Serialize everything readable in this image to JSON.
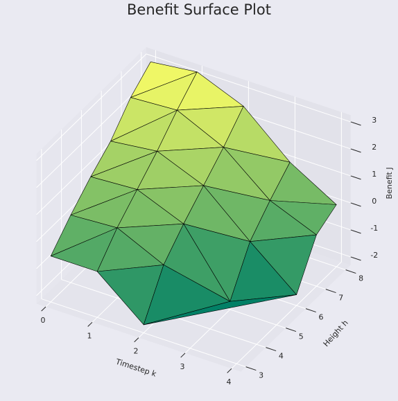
{
  "chart_data": {
    "type": "trisurf3d",
    "title": "Benefit Surface Plot",
    "xlabel": "Timestep k",
    "ylabel": "Height h",
    "zlabel": "Benefit J",
    "x": [
      0,
      0,
      0,
      0,
      0,
      0,
      1,
      1,
      1,
      1,
      1,
      1,
      2,
      2,
      2,
      2,
      2,
      2,
      3,
      3,
      3,
      3,
      4,
      4,
      4
    ],
    "y": [
      3,
      4,
      5,
      6,
      7,
      8,
      3,
      4,
      5,
      6,
      7,
      8,
      3,
      4,
      5,
      6,
      7,
      8,
      5,
      6,
      7,
      8,
      6,
      7,
      8
    ],
    "z": [
      -0.6,
      0.2,
      0.9,
      1.5,
      2.4,
      3.0,
      -0.6,
      0.3,
      1.0,
      1.7,
      2.5,
      3.2,
      -2.0,
      -0.5,
      0.3,
      1.0,
      1.7,
      2.5,
      -2.0,
      -0.5,
      0.3,
      1.0,
      -1.9,
      -0.4,
      0.0
    ],
    "triangles": [
      [
        0,
        6,
        7
      ],
      [
        0,
        7,
        1
      ],
      [
        1,
        7,
        8
      ],
      [
        1,
        8,
        2
      ],
      [
        2,
        8,
        9
      ],
      [
        2,
        9,
        3
      ],
      [
        3,
        9,
        10
      ],
      [
        3,
        10,
        4
      ],
      [
        4,
        10,
        11
      ],
      [
        4,
        11,
        5
      ],
      [
        6,
        12,
        13
      ],
      [
        6,
        13,
        7
      ],
      [
        7,
        13,
        14
      ],
      [
        7,
        14,
        8
      ],
      [
        8,
        14,
        15
      ],
      [
        8,
        15,
        9
      ],
      [
        9,
        15,
        16
      ],
      [
        9,
        16,
        10
      ],
      [
        10,
        16,
        17
      ],
      [
        10,
        17,
        11
      ],
      [
        12,
        13,
        18
      ],
      [
        13,
        14,
        18
      ],
      [
        14,
        18,
        19
      ],
      [
        14,
        19,
        15
      ],
      [
        15,
        19,
        20
      ],
      [
        15,
        20,
        16
      ],
      [
        16,
        20,
        21
      ],
      [
        16,
        21,
        17
      ],
      [
        12,
        18,
        22
      ],
      [
        18,
        22,
        19
      ],
      [
        19,
        22,
        23
      ],
      [
        19,
        23,
        20
      ],
      [
        20,
        23,
        24
      ],
      [
        20,
        24,
        21
      ]
    ],
    "cmap": "summer",
    "edgecolor": "#000000",
    "xlim": [
      -0.2,
      4.2
    ],
    "ylim": [
      2.75,
      8.25
    ],
    "zlim": [
      -2.3,
      3.25
    ],
    "xticks": [
      0,
      1,
      2,
      3,
      4
    ],
    "yticks": [
      3,
      4,
      5,
      6,
      7,
      8
    ],
    "zticks": [
      -2,
      -1,
      0,
      1,
      2,
      3
    ],
    "grid": true
  }
}
